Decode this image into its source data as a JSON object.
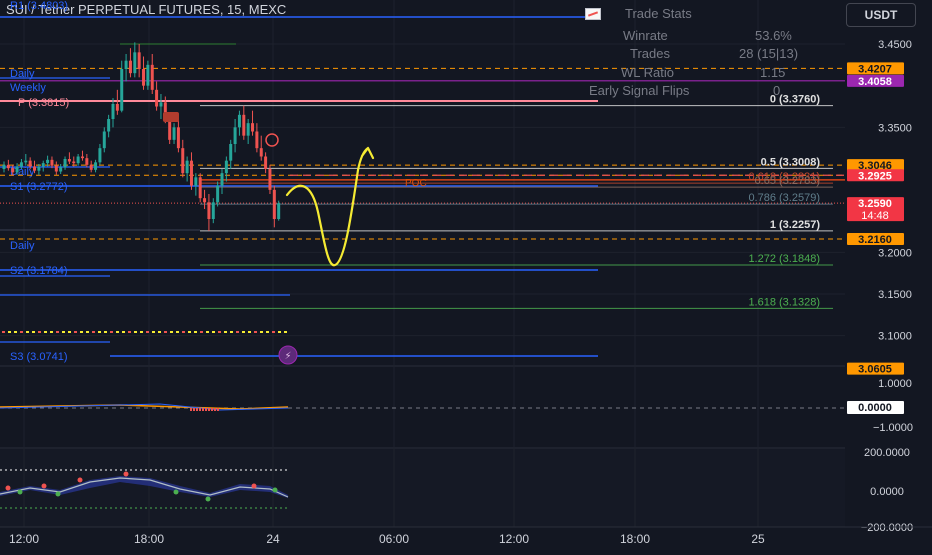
{
  "header": {
    "symbol_title": "SUI / Tether PERPETUAL FUTURES, 15, MEXC",
    "currency_button": "USDT"
  },
  "trade_stats": {
    "title": "Trade Stats",
    "rows": [
      {
        "label": "Winrate",
        "value": "53.6%"
      },
      {
        "label": "Trades",
        "value": "28 (15|13)"
      },
      {
        "label": "WL Ratio",
        "value": "1.15"
      },
      {
        "label": "Early Signal Flips",
        "value": "0"
      }
    ]
  },
  "colors": {
    "background": "#131722",
    "grid": "#1e222d",
    "bull_candle": "#26a69a",
    "bear_candle": "#ef5350",
    "pivot_line": "#2962ff",
    "pivot_text": "#2962ff",
    "fib_level": "#d1d4dc",
    "fib_ext": "#4caf50",
    "orange_dashed": "#ff9800",
    "drawing": "#f5eb33",
    "magenta": "#9c27b0",
    "pink": "#ff8a9a"
  },
  "chart_data": {
    "type": "candlestick",
    "title": "SUI / Tether PERPETUAL FUTURES, 15, MEXC",
    "ylim": [
      3.04,
      3.475
    ],
    "x_tick_labels": [
      "12:00",
      "18:00",
      "24",
      "06:00",
      "12:00",
      "18:00",
      "25"
    ],
    "y_tick_labels": [
      "3.4500",
      "3.3500",
      "3.2000",
      "3.1500",
      "3.1000"
    ],
    "candles": [
      {
        "o": 3.3,
        "h": 3.309,
        "l": 3.296,
        "c": 3.305
      },
      {
        "o": 3.305,
        "h": 3.311,
        "l": 3.298,
        "c": 3.301
      },
      {
        "o": 3.301,
        "h": 3.305,
        "l": 3.292,
        "c": 3.296
      },
      {
        "o": 3.296,
        "h": 3.307,
        "l": 3.293,
        "c": 3.303
      },
      {
        "o": 3.303,
        "h": 3.312,
        "l": 3.3,
        "c": 3.308
      },
      {
        "o": 3.308,
        "h": 3.318,
        "l": 3.304,
        "c": 3.31
      },
      {
        "o": 3.31,
        "h": 3.314,
        "l": 3.3,
        "c": 3.303
      },
      {
        "o": 3.303,
        "h": 3.31,
        "l": 3.295,
        "c": 3.298
      },
      {
        "o": 3.298,
        "h": 3.306,
        "l": 3.293,
        "c": 3.303
      },
      {
        "o": 3.303,
        "h": 3.31,
        "l": 3.297,
        "c": 3.307
      },
      {
        "o": 3.307,
        "h": 3.316,
        "l": 3.303,
        "c": 3.311
      },
      {
        "o": 3.311,
        "h": 3.315,
        "l": 3.301,
        "c": 3.304
      },
      {
        "o": 3.304,
        "h": 3.309,
        "l": 3.293,
        "c": 3.297
      },
      {
        "o": 3.297,
        "h": 3.306,
        "l": 3.294,
        "c": 3.302
      },
      {
        "o": 3.302,
        "h": 3.315,
        "l": 3.299,
        "c": 3.312
      },
      {
        "o": 3.312,
        "h": 3.32,
        "l": 3.306,
        "c": 3.309
      },
      {
        "o": 3.309,
        "h": 3.315,
        "l": 3.303,
        "c": 3.307
      },
      {
        "o": 3.307,
        "h": 3.318,
        "l": 3.304,
        "c": 3.315
      },
      {
        "o": 3.315,
        "h": 3.322,
        "l": 3.31,
        "c": 3.313
      },
      {
        "o": 3.313,
        "h": 3.318,
        "l": 3.302,
        "c": 3.305
      },
      {
        "o": 3.305,
        "h": 3.31,
        "l": 3.296,
        "c": 3.299
      },
      {
        "o": 3.299,
        "h": 3.311,
        "l": 3.296,
        "c": 3.308
      },
      {
        "o": 3.308,
        "h": 3.33,
        "l": 3.305,
        "c": 3.325
      },
      {
        "o": 3.325,
        "h": 3.35,
        "l": 3.32,
        "c": 3.345
      },
      {
        "o": 3.345,
        "h": 3.365,
        "l": 3.338,
        "c": 3.36
      },
      {
        "o": 3.36,
        "h": 3.385,
        "l": 3.35,
        "c": 3.378
      },
      {
        "o": 3.378,
        "h": 3.395,
        "l": 3.365,
        "c": 3.37
      },
      {
        "o": 3.37,
        "h": 3.43,
        "l": 3.368,
        "c": 3.42
      },
      {
        "o": 3.42,
        "h": 3.438,
        "l": 3.405,
        "c": 3.43
      },
      {
        "o": 3.43,
        "h": 3.445,
        "l": 3.41,
        "c": 3.415
      },
      {
        "o": 3.415,
        "h": 3.452,
        "l": 3.41,
        "c": 3.44
      },
      {
        "o": 3.44,
        "h": 3.45,
        "l": 3.41,
        "c": 3.42
      },
      {
        "o": 3.42,
        "h": 3.435,
        "l": 3.395,
        "c": 3.4
      },
      {
        "o": 3.4,
        "h": 3.43,
        "l": 3.395,
        "c": 3.425
      },
      {
        "o": 3.425,
        "h": 3.438,
        "l": 3.39,
        "c": 3.395
      },
      {
        "o": 3.395,
        "h": 3.405,
        "l": 3.37,
        "c": 3.375
      },
      {
        "o": 3.375,
        "h": 3.39,
        "l": 3.36,
        "c": 3.38
      },
      {
        "o": 3.38,
        "h": 3.387,
        "l": 3.355,
        "c": 3.36
      },
      {
        "o": 3.36,
        "h": 3.365,
        "l": 3.33,
        "c": 3.335
      },
      {
        "o": 3.335,
        "h": 3.355,
        "l": 3.33,
        "c": 3.35
      },
      {
        "o": 3.35,
        "h": 3.36,
        "l": 3.32,
        "c": 3.325
      },
      {
        "o": 3.325,
        "h": 3.335,
        "l": 3.29,
        "c": 3.295
      },
      {
        "o": 3.295,
        "h": 3.315,
        "l": 3.285,
        "c": 3.31
      },
      {
        "o": 3.31,
        "h": 3.32,
        "l": 3.275,
        "c": 3.28
      },
      {
        "o": 3.28,
        "h": 3.295,
        "l": 3.268,
        "c": 3.29
      },
      {
        "o": 3.29,
        "h": 3.295,
        "l": 3.26,
        "c": 3.265
      },
      {
        "o": 3.265,
        "h": 3.275,
        "l": 3.252,
        "c": 3.26
      },
      {
        "o": 3.26,
        "h": 3.27,
        "l": 3.2257,
        "c": 3.24
      },
      {
        "o": 3.24,
        "h": 3.265,
        "l": 3.235,
        "c": 3.26
      },
      {
        "o": 3.26,
        "h": 3.285,
        "l": 3.255,
        "c": 3.28
      },
      {
        "o": 3.28,
        "h": 3.3,
        "l": 3.27,
        "c": 3.295
      },
      {
        "o": 3.295,
        "h": 3.315,
        "l": 3.285,
        "c": 3.31
      },
      {
        "o": 3.31,
        "h": 3.335,
        "l": 3.3,
        "c": 3.33
      },
      {
        "o": 3.33,
        "h": 3.36,
        "l": 3.32,
        "c": 3.35
      },
      {
        "o": 3.35,
        "h": 3.37,
        "l": 3.34,
        "c": 3.365
      },
      {
        "o": 3.365,
        "h": 3.376,
        "l": 3.335,
        "c": 3.34
      },
      {
        "o": 3.34,
        "h": 3.36,
        "l": 3.33,
        "c": 3.355
      },
      {
        "o": 3.355,
        "h": 3.37,
        "l": 3.34,
        "c": 3.345
      },
      {
        "o": 3.345,
        "h": 3.355,
        "l": 3.32,
        "c": 3.325
      },
      {
        "o": 3.325,
        "h": 3.34,
        "l": 3.31,
        "c": 3.315
      },
      {
        "o": 3.315,
        "h": 3.32,
        "l": 3.295,
        "c": 3.3
      },
      {
        "o": 3.3,
        "h": 3.305,
        "l": 3.27,
        "c": 3.275
      },
      {
        "o": 3.275,
        "h": 3.28,
        "l": 3.23,
        "c": 3.24
      },
      {
        "o": 3.24,
        "h": 3.262,
        "l": 3.238,
        "c": 3.259
      }
    ],
    "horizontal_levels": [
      {
        "label": "R1 (3.4803)",
        "value": 3.4803,
        "kind": "pivot"
      },
      {
        "label": "P (3.3815)",
        "value": 3.3815,
        "kind": "pivot-pink"
      },
      {
        "label": "S1 (3.2772)",
        "value": 3.2772,
        "kind": "pivot"
      },
      {
        "label": "S2 (3.1784)",
        "value": 3.1784,
        "kind": "pivot"
      },
      {
        "label": "S3 (3.0741)",
        "value": 3.0741,
        "kind": "pivot"
      },
      {
        "label": "Daily",
        "value": 3.405,
        "kind": "pivot-label"
      },
      {
        "label": "Weekly",
        "value": 3.3935,
        "kind": "pivot-label"
      },
      {
        "label": "Daily",
        "value": 3.299,
        "kind": "pivot-label"
      },
      {
        "label": "Daily",
        "value": 3.208,
        "kind": "pivot-label"
      }
    ],
    "fib_levels": [
      {
        "label": "0 (3.3760)",
        "value": 3.376
      },
      {
        "label": "0.5 (3.3008)",
        "value": 3.3008
      },
      {
        "label": "0.618 (3.2831)",
        "value": 3.2831
      },
      {
        "label": "0.65 (3.2783)",
        "value": 3.2783
      },
      {
        "label": "0.786 (3.2579)",
        "value": 3.2579
      },
      {
        "label": "1 (3.2257)",
        "value": 3.2257
      },
      {
        "label": "1.272 (3.1848)",
        "value": 3.1848
      },
      {
        "label": "1.618 (3.1328)",
        "value": 3.1328
      }
    ],
    "poc": {
      "label": "POC",
      "value": 3.287
    },
    "price_tags": [
      {
        "text": "3.4207",
        "value": 3.4207,
        "kind": "orange"
      },
      {
        "text": "3.4058",
        "value": 3.4058,
        "kind": "magenta"
      },
      {
        "text": "3.3046",
        "value": 3.3046,
        "kind": "orange"
      },
      {
        "text": "3.2925",
        "value": 3.2925,
        "kind": "red"
      },
      {
        "text": "3.2590",
        "value": 3.259,
        "kind": "red-current",
        "countdown": "14:48"
      },
      {
        "text": "3.2160",
        "value": 3.216,
        "kind": "orange"
      },
      {
        "text": "3.0605",
        "value": 3.0605,
        "kind": "orange"
      }
    ],
    "oscillator_1": {
      "y_tick_labels": [
        "1.0000",
        "0.0000",
        "−1.0000"
      ],
      "last_value": "0.0000"
    },
    "oscillator_2": {
      "y_tick_labels": [
        "200.0000",
        "0.0000",
        "−200.0000"
      ]
    }
  }
}
